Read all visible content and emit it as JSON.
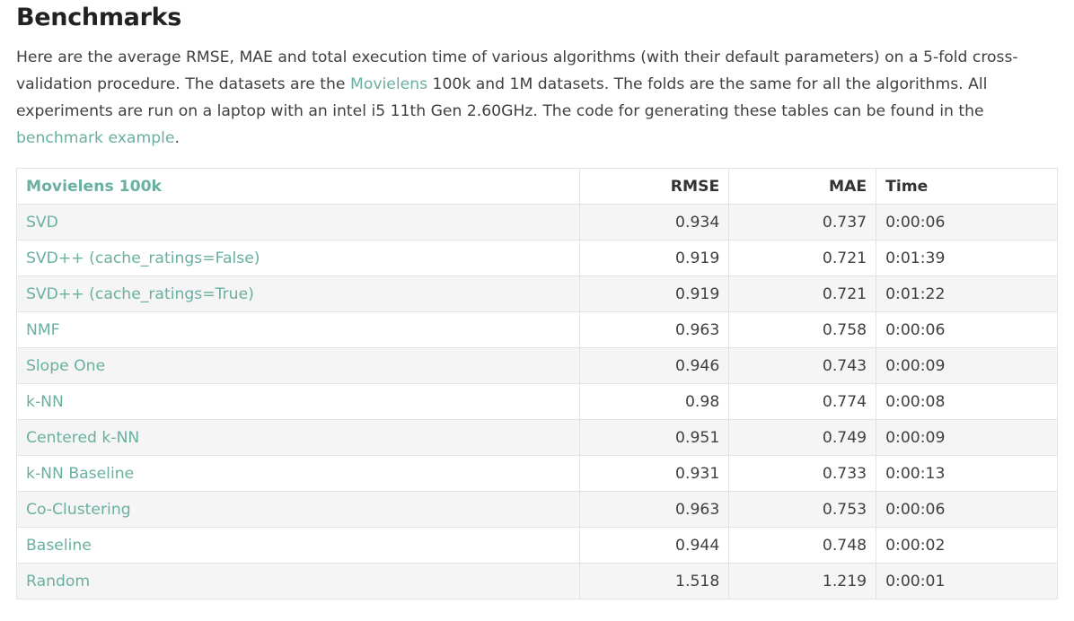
{
  "page": {
    "title": "Benchmarks",
    "intro": {
      "part1": "Here are the average RMSE, MAE and total execution time of various algorithms (with their default parameters) on a 5-fold cross-validation procedure. The datasets are the ",
      "movielens_link": "Movielens",
      "part2": " 100k and 1M datasets. The folds are the same for all the algorithms. All experiments are run on a laptop with an intel i5 11th Gen 2.60GHz. The code for generating these tables can be found in the ",
      "benchmark_link": "benchmark example",
      "part3": "."
    }
  },
  "table": {
    "headers": {
      "dataset": "Movielens 100k",
      "rmse": "RMSE",
      "mae": "MAE",
      "time": "Time"
    },
    "rows": [
      {
        "algorithm": "SVD",
        "rmse": "0.934",
        "mae": "0.737",
        "time": "0:00:06"
      },
      {
        "algorithm": "SVD++ (cache_ratings=False)",
        "rmse": "0.919",
        "mae": "0.721",
        "time": "0:01:39"
      },
      {
        "algorithm": "SVD++ (cache_ratings=True)",
        "rmse": "0.919",
        "mae": "0.721",
        "time": "0:01:22"
      },
      {
        "algorithm": "NMF",
        "rmse": "0.963",
        "mae": "0.758",
        "time": "0:00:06"
      },
      {
        "algorithm": "Slope One",
        "rmse": "0.946",
        "mae": "0.743",
        "time": "0:00:09"
      },
      {
        "algorithm": "k-NN",
        "rmse": "0.98",
        "mae": "0.774",
        "time": "0:00:08"
      },
      {
        "algorithm": "Centered k-NN",
        "rmse": "0.951",
        "mae": "0.749",
        "time": "0:00:09"
      },
      {
        "algorithm": "k-NN Baseline",
        "rmse": "0.931",
        "mae": "0.733",
        "time": "0:00:13"
      },
      {
        "algorithm": "Co-Clustering",
        "rmse": "0.963",
        "mae": "0.753",
        "time": "0:00:06"
      },
      {
        "algorithm": "Baseline",
        "rmse": "0.944",
        "mae": "0.748",
        "time": "0:00:02"
      },
      {
        "algorithm": "Random",
        "rmse": "1.518",
        "mae": "1.219",
        "time": "0:00:01"
      }
    ]
  },
  "colors": {
    "link": "#6ab0a0",
    "text": "#404040",
    "heading": "#222222",
    "row_stripe": "#f5f5f5",
    "border": "#e1e4e5"
  }
}
